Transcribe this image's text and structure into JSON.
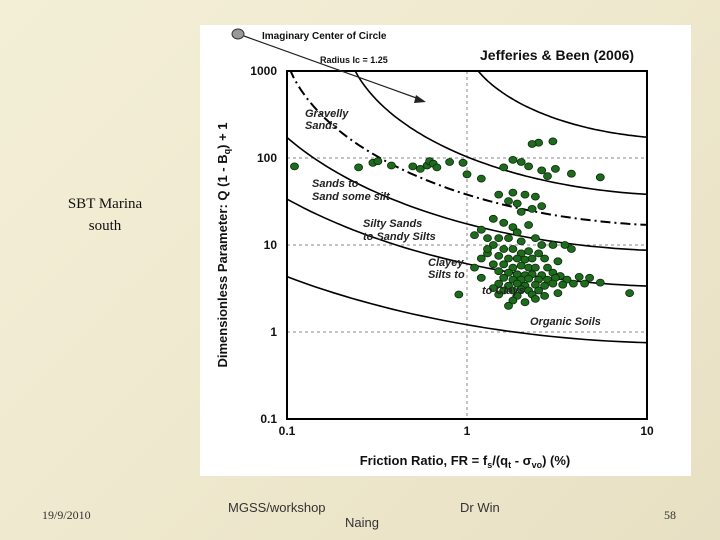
{
  "slide": {
    "side_title_line1": "SBT Marina",
    "side_title_line2": "south",
    "footer_date": "19/9/2010",
    "footer_event": "MGSS/workshop",
    "footer_author_first": "Dr Win",
    "footer_author_last": "Naing",
    "page_number": "58"
  },
  "colors": {
    "background": "#f0ead0",
    "plot_bg": "#ffffff",
    "point_fill": "#1e6b1e",
    "point_stroke": "#0a2a0a",
    "curve": "#000000"
  },
  "chart_data": {
    "type": "scatter",
    "title": "Jefferies & Been (2006)",
    "xlabel": "Friction Ratio, FR = fs/(qt - σvo)  (%)",
    "ylabel": "Dimensionless Parameter: Q (1 - Bq) + 1",
    "x_scale": "log",
    "y_scale": "log",
    "xlim": [
      0.1,
      10
    ],
    "ylim": [
      0.1,
      1000
    ],
    "x_ticks": [
      "0.1",
      "1",
      "10"
    ],
    "y_ticks": [
      "0.1",
      "1",
      "10",
      "100",
      "1000"
    ],
    "grid": true,
    "annotations": {
      "center": "Imaginary Center of Circle",
      "radius": "Radius Ic = 1.25",
      "zones": [
        "Gravelly Sands",
        "Sands to Sand some silt",
        "Silty Sands to Sandy Silts",
        "Clayey Silts to Clays",
        "Organic Soils"
      ]
    },
    "boundary_radii_ic": [
      1.25,
      1.9,
      2.54,
      2.95,
      3.6
    ],
    "dashdot_radius_ic": 2.25,
    "points": [
      [
        0.11,
        80
      ],
      [
        0.25,
        78
      ],
      [
        0.3,
        88
      ],
      [
        0.32,
        92
      ],
      [
        0.38,
        82
      ],
      [
        0.5,
        80
      ],
      [
        0.55,
        75
      ],
      [
        0.6,
        82
      ],
      [
        0.62,
        92
      ],
      [
        0.65,
        86
      ],
      [
        0.68,
        78
      ],
      [
        0.8,
        90
      ],
      [
        0.95,
        88
      ],
      [
        1.0,
        65
      ],
      [
        1.2,
        58
      ],
      [
        2.5,
        150
      ],
      [
        3.0,
        155
      ],
      [
        2.3,
        145
      ],
      [
        1.8,
        95
      ],
      [
        2.0,
        90
      ],
      [
        1.6,
        78
      ],
      [
        2.2,
        80
      ],
      [
        2.6,
        72
      ],
      [
        3.1,
        75
      ],
      [
        3.8,
        66
      ],
      [
        2.8,
        62
      ],
      [
        5.5,
        60
      ],
      [
        1.5,
        38
      ],
      [
        1.8,
        40
      ],
      [
        2.1,
        38
      ],
      [
        2.4,
        36
      ],
      [
        1.7,
        32
      ],
      [
        1.9,
        30
      ],
      [
        2.3,
        26
      ],
      [
        2.6,
        28
      ],
      [
        2.0,
        24
      ],
      [
        1.4,
        20
      ],
      [
        1.6,
        18
      ],
      [
        1.8,
        16
      ],
      [
        2.2,
        17
      ],
      [
        1.9,
        14
      ],
      [
        1.3,
        12
      ],
      [
        1.5,
        12
      ],
      [
        1.7,
        12
      ],
      [
        2.0,
        11
      ],
      [
        2.4,
        12
      ],
      [
        2.6,
        10
      ],
      [
        3.0,
        10
      ],
      [
        3.5,
        10
      ],
      [
        3.8,
        9
      ],
      [
        1.4,
        10
      ],
      [
        1.6,
        9
      ],
      [
        1.8,
        9
      ],
      [
        2.0,
        8
      ],
      [
        2.2,
        8.5
      ],
      [
        2.5,
        8
      ],
      [
        1.3,
        8
      ],
      [
        1.5,
        7.5
      ],
      [
        1.7,
        7
      ],
      [
        1.9,
        7
      ],
      [
        2.1,
        6.8
      ],
      [
        2.3,
        7
      ],
      [
        2.7,
        7
      ],
      [
        3.2,
        6.5
      ],
      [
        1.4,
        6
      ],
      [
        1.6,
        6
      ],
      [
        1.8,
        5.5
      ],
      [
        2.0,
        5.8
      ],
      [
        2.2,
        5.5
      ],
      [
        2.4,
        5.5
      ],
      [
        2.8,
        5.5
      ],
      [
        1.5,
        5
      ],
      [
        1.7,
        4.8
      ],
      [
        1.9,
        4.6
      ],
      [
        2.1,
        4.5
      ],
      [
        2.3,
        4.6
      ],
      [
        2.6,
        4.5
      ],
      [
        3.0,
        4.8
      ],
      [
        3.3,
        4.4
      ],
      [
        1.6,
        4.2
      ],
      [
        1.8,
        4.0
      ],
      [
        2.0,
        4.0
      ],
      [
        2.2,
        4.1
      ],
      [
        2.5,
        4.0
      ],
      [
        2.8,
        4.0
      ],
      [
        3.1,
        4.2
      ],
      [
        3.6,
        4.0
      ],
      [
        4.2,
        4.3
      ],
      [
        4.8,
        4.2
      ],
      [
        1.5,
        3.6
      ],
      [
        1.7,
        3.4
      ],
      [
        1.9,
        3.6
      ],
      [
        2.1,
        3.4
      ],
      [
        2.4,
        3.5
      ],
      [
        2.7,
        3.4
      ],
      [
        3.0,
        3.6
      ],
      [
        3.4,
        3.5
      ],
      [
        3.9,
        3.6
      ],
      [
        4.5,
        3.6
      ],
      [
        5.5,
        3.7
      ],
      [
        1.4,
        3.2
      ],
      [
        1.6,
        3.0
      ],
      [
        1.8,
        3.0
      ],
      [
        2.0,
        3.1
      ],
      [
        2.2,
        3.0
      ],
      [
        2.5,
        3.0
      ],
      [
        1.5,
        2.7
      ],
      [
        1.9,
        2.6
      ],
      [
        2.3,
        2.7
      ],
      [
        2.7,
        2.6
      ],
      [
        3.2,
        2.8
      ],
      [
        1.8,
        2.3
      ],
      [
        2.1,
        2.2
      ],
      [
        2.4,
        2.4
      ],
      [
        1.7,
        2.0
      ],
      [
        0.9,
        2.7
      ],
      [
        1.2,
        4.2
      ],
      [
        1.1,
        5.5
      ],
      [
        1.2,
        7
      ],
      [
        1.3,
        9
      ],
      [
        1.2,
        15
      ],
      [
        1.1,
        13
      ],
      [
        8.0,
        2.8
      ]
    ]
  }
}
